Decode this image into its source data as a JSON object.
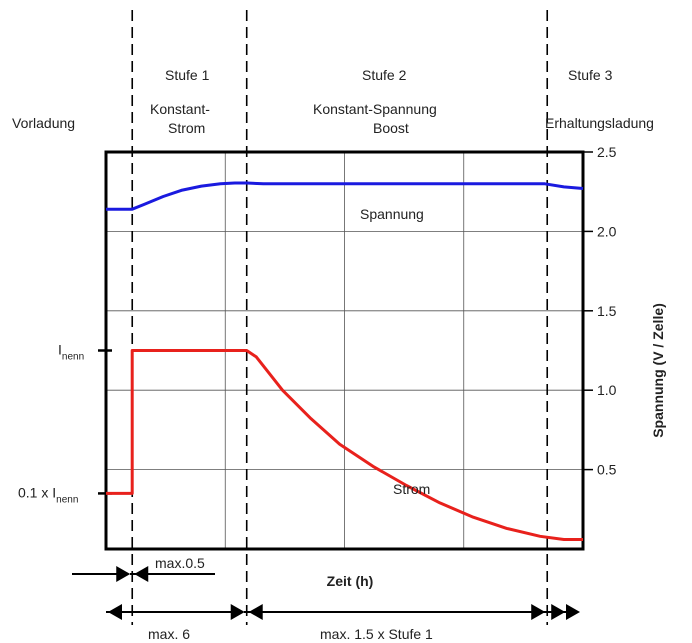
{
  "chart_data": {
    "type": "line",
    "title": "",
    "xlabel": "Zeit (h)",
    "ylabel": "Spannung (V / Zelle)",
    "ylim": [
      0,
      2.5
    ],
    "yticks": [
      "0.5",
      "1.0",
      "1.5",
      "2.0",
      "2.5"
    ],
    "ytick_values": [
      0.5,
      1.0,
      1.5,
      2.0,
      2.5
    ],
    "xlim": [
      0,
      100
    ],
    "grid": true,
    "phase_boundaries": [
      5.5,
      29.5,
      92.5
    ],
    "stages": [
      {
        "stage": "",
        "name": "Vorladung",
        "x": 2.75
      },
      {
        "stage": "Stufe 1",
        "name": "Konstant-\nStrom",
        "x": 17.5
      },
      {
        "stage": "Stufe 2",
        "name": "Konstant-Spannung\nBoost",
        "x": 61
      },
      {
        "stage": "Stufe 3",
        "name": "Erhaltungsladung",
        "x": 100
      }
    ],
    "series": [
      {
        "name": "Spannung",
        "color": "#1a1adf",
        "x": [
          0,
          4.5,
          5.5,
          8,
          12,
          16,
          20,
          24,
          27,
          29.5,
          33,
          60,
          92,
          96,
          100
        ],
        "y": [
          2.14,
          2.14,
          2.14,
          2.17,
          2.22,
          2.26,
          2.285,
          2.3,
          2.305,
          2.305,
          2.3,
          2.3,
          2.3,
          2.28,
          2.27
        ]
      },
      {
        "name": "Strom",
        "color": "#e8211c",
        "x": [
          0,
          5.5,
          5.5,
          29.5,
          31.5,
          37,
          43,
          49,
          56,
          63,
          70,
          77,
          84,
          91,
          96,
          100
        ],
        "y": [
          0.35,
          0.35,
          1.25,
          1.25,
          1.21,
          1.0,
          0.82,
          0.66,
          0.52,
          0.4,
          0.29,
          0.2,
          0.13,
          0.08,
          0.06,
          0.06
        ]
      }
    ],
    "left_axis_labels": [
      {
        "text": "I",
        "sub": "nenn",
        "prefix": "",
        "y": 1.25
      },
      {
        "text": "0.1 x I",
        "sub": "nenn",
        "y": 0.35
      }
    ],
    "annotations": {
      "vorladung_duration": "max.0.5",
      "stage1_duration": "max. 6",
      "stage2_duration": "max. 1.5 x Stufe 1"
    }
  }
}
